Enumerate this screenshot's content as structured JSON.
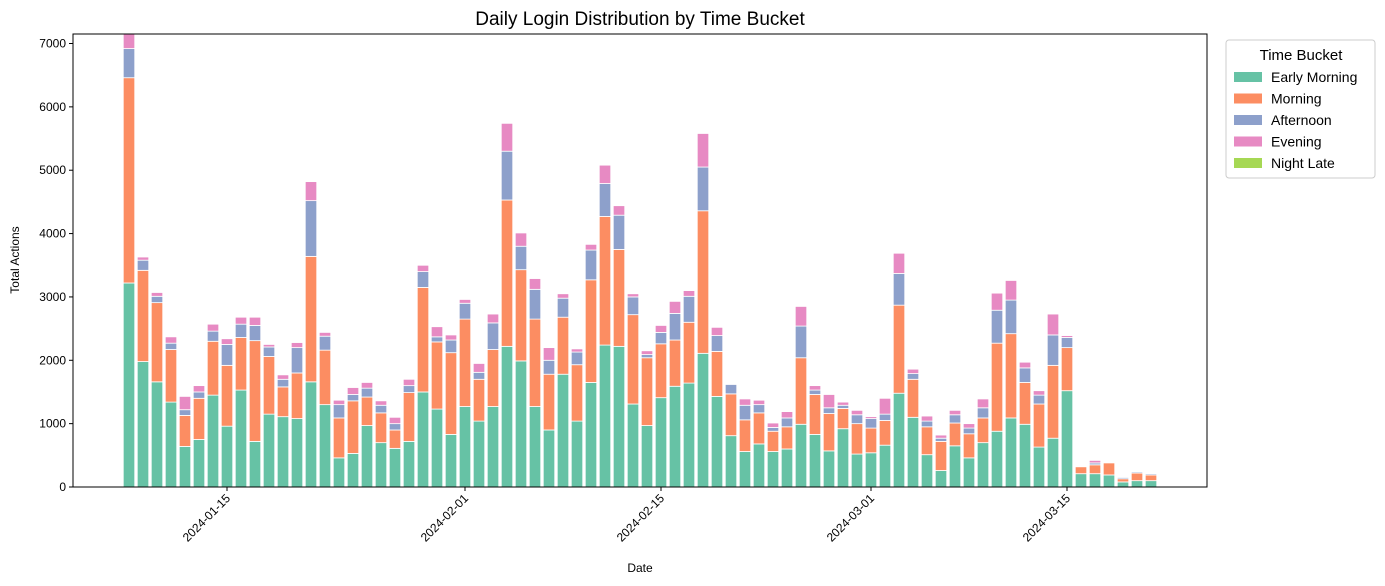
{
  "chart_data": {
    "type": "stacked_bar",
    "title": "Daily Login Distribution by Time Bucket",
    "x_label": "Date",
    "y_label": "Total Actions",
    "legend_title": "Time Bucket",
    "legend": "outside-upper-right",
    "x": [
      "2024-01-08",
      "2024-01-09",
      "2024-01-10",
      "2024-01-11",
      "2024-01-12",
      "2024-01-13",
      "2024-01-14",
      "2024-01-15",
      "2024-01-16",
      "2024-01-17",
      "2024-01-18",
      "2024-01-19",
      "2024-01-20",
      "2024-01-21",
      "2024-01-22",
      "2024-01-23",
      "2024-01-24",
      "2024-01-25",
      "2024-01-26",
      "2024-01-27",
      "2024-01-28",
      "2024-01-29",
      "2024-01-30",
      "2024-01-31",
      "2024-02-01",
      "2024-02-02",
      "2024-02-03",
      "2024-02-04",
      "2024-02-05",
      "2024-02-06",
      "2024-02-07",
      "2024-02-08",
      "2024-02-09",
      "2024-02-10",
      "2024-02-11",
      "2024-02-12",
      "2024-02-13",
      "2024-02-14",
      "2024-02-15",
      "2024-02-16",
      "2024-02-17",
      "2024-02-18",
      "2024-02-19",
      "2024-02-20",
      "2024-02-21",
      "2024-02-22",
      "2024-02-23",
      "2024-02-24",
      "2024-02-25",
      "2024-02-26",
      "2024-02-27",
      "2024-02-28",
      "2024-02-29",
      "2024-03-01",
      "2024-03-02",
      "2024-03-03",
      "2024-03-04",
      "2024-03-05",
      "2024-03-06",
      "2024-03-07",
      "2024-03-08",
      "2024-03-09",
      "2024-03-10",
      "2024-03-11",
      "2024-03-12",
      "2024-03-13",
      "2024-03-14",
      "2024-03-15",
      "2024-03-16",
      "2024-03-17",
      "2024-03-18",
      "2024-03-19",
      "2024-03-20",
      "2024-03-21"
    ],
    "series": [
      {
        "name": "Early Morning",
        "color": "#66c2a5",
        "values": [
          3220,
          1980,
          1660,
          1340,
          640,
          750,
          1450,
          960,
          1530,
          720,
          1150,
          1110,
          1080,
          1660,
          1300,
          460,
          530,
          970,
          700,
          610,
          720,
          1500,
          1230,
          830,
          1270,
          1040,
          1270,
          2220,
          1990,
          1270,
          900,
          1780,
          1040,
          1650,
          2240,
          2220,
          1310,
          970,
          1410,
          1590,
          1640,
          2110,
          1430,
          810,
          560,
          680,
          560,
          600,
          990,
          830,
          570,
          920,
          520,
          540,
          660,
          1480,
          1100,
          510,
          260,
          650,
          460,
          700,
          880,
          1090,
          990,
          630,
          770,
          1520,
          210,
          210,
          190,
          80,
          100,
          100
        ]
      },
      {
        "name": "Morning",
        "color": "#fc8d62",
        "values": [
          3240,
          1440,
          1250,
          830,
          490,
          650,
          850,
          960,
          830,
          1590,
          910,
          470,
          720,
          1980,
          860,
          630,
          830,
          450,
          470,
          290,
          770,
          1650,
          1060,
          1290,
          1380,
          660,
          900,
          2310,
          1440,
          1380,
          880,
          900,
          890,
          1620,
          2030,
          1530,
          1410,
          1070,
          850,
          730,
          960,
          2250,
          710,
          660,
          500,
          490,
          320,
          350,
          1050,
          630,
          590,
          320,
          480,
          390,
          390,
          1390,
          600,
          440,
          460,
          360,
          380,
          390,
          1390,
          1330,
          660,
          680,
          1150,
          680,
          110,
          140,
          190,
          50,
          120,
          90
        ]
      },
      {
        "name": "Afternoon",
        "color": "#8da0cb",
        "values": [
          460,
          160,
          100,
          100,
          90,
          100,
          160,
          330,
          210,
          240,
          150,
          120,
          400,
          880,
          220,
          210,
          100,
          140,
          120,
          100,
          110,
          250,
          80,
          200,
          250,
          110,
          420,
          770,
          370,
          470,
          220,
          300,
          200,
          470,
          520,
          540,
          280,
          50,
          180,
          420,
          410,
          690,
          250,
          150,
          230,
          130,
          60,
          140,
          500,
          70,
          90,
          50,
          140,
          150,
          100,
          500,
          90,
          90,
          50,
          130,
          90,
          160,
          520,
          530,
          230,
          140,
          480,
          160,
          10,
          30,
          0,
          20,
          20,
          20
        ]
      },
      {
        "name": "Evening",
        "color": "#e78ac3",
        "values": [
          250,
          50,
          60,
          100,
          210,
          100,
          110,
          90,
          110,
          130,
          40,
          70,
          80,
          300,
          60,
          70,
          110,
          90,
          70,
          100,
          100,
          100,
          160,
          80,
          60,
          140,
          140,
          440,
          210,
          170,
          200,
          70,
          50,
          90,
          290,
          150,
          50,
          60,
          110,
          190,
          90,
          530,
          130,
          10,
          100,
          70,
          70,
          100,
          310,
          70,
          210,
          50,
          70,
          30,
          250,
          320,
          70,
          80,
          50,
          70,
          70,
          140,
          270,
          310,
          90,
          70,
          330,
          30,
          10,
          40,
          0,
          0,
          10,
          10
        ]
      },
      {
        "name": "Night Late",
        "color": "#a6d854",
        "values": [
          0,
          0,
          0,
          0,
          0,
          0,
          0,
          0,
          0,
          0,
          0,
          0,
          0,
          0,
          0,
          0,
          0,
          0,
          0,
          0,
          0,
          0,
          0,
          0,
          0,
          0,
          0,
          0,
          0,
          0,
          0,
          0,
          0,
          0,
          0,
          0,
          0,
          0,
          0,
          0,
          0,
          0,
          0,
          0,
          0,
          0,
          0,
          0,
          0,
          0,
          0,
          0,
          0,
          0,
          0,
          0,
          0,
          0,
          0,
          0,
          0,
          0,
          0,
          0,
          0,
          0,
          0,
          0,
          0,
          0,
          0,
          0,
          0,
          0
        ]
      }
    ],
    "xlim": [
      "2024-01-04",
      "2024-03-25"
    ],
    "xticks": [
      "2024-01-15",
      "2024-02-01",
      "2024-02-15",
      "2024-03-01",
      "2024-03-15"
    ],
    "ylim": [
      0,
      7150
    ],
    "yticks": [
      0,
      1000,
      2000,
      3000,
      4000,
      5000,
      6000,
      7000
    ]
  }
}
